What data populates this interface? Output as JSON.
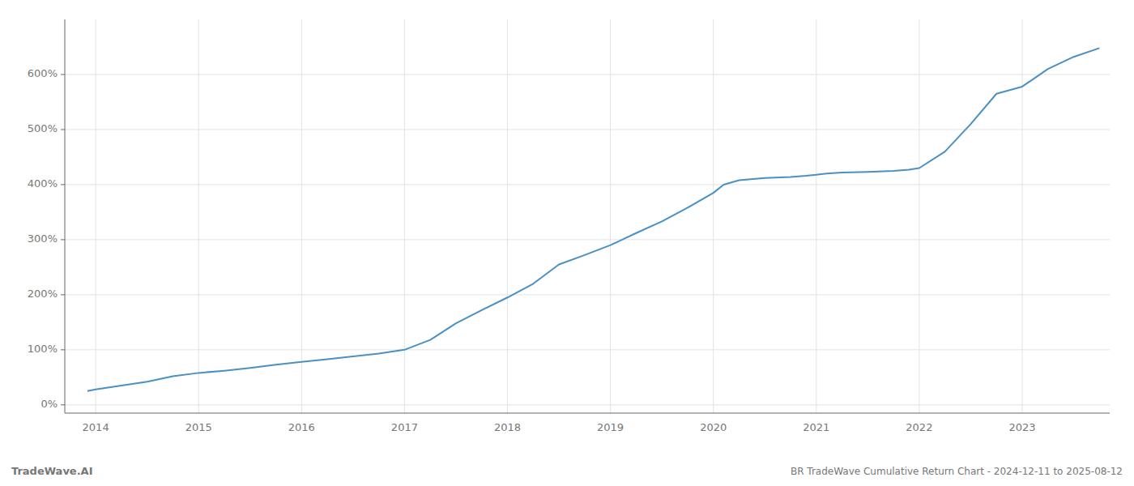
{
  "chart_data": {
    "type": "line",
    "title": "BR TradeWave Cumulative Return Chart - 2024-12-11 to 2025-08-12",
    "watermark": "TradeWave.AI",
    "color": "#4a90c4",
    "x": [
      2013.92,
      2014.0,
      2014.25,
      2014.5,
      2014.75,
      2015.0,
      2015.25,
      2015.5,
      2015.75,
      2016.0,
      2016.25,
      2016.5,
      2016.75,
      2017.0,
      2017.25,
      2017.5,
      2017.75,
      2018.0,
      2018.25,
      2018.5,
      2018.75,
      2019.0,
      2019.25,
      2019.5,
      2019.75,
      2020.0,
      2020.1,
      2020.25,
      2020.5,
      2020.75,
      2020.9,
      2021.0,
      2021.1,
      2021.25,
      2021.5,
      2021.75,
      2021.9,
      2022.0,
      2022.25,
      2022.5,
      2022.75,
      2023.0,
      2023.25,
      2023.5,
      2023.75
    ],
    "values": [
      25,
      28,
      35,
      42,
      52,
      58,
      62,
      67,
      73,
      78,
      83,
      88,
      93,
      100,
      118,
      148,
      172,
      195,
      220,
      255,
      272,
      290,
      312,
      333,
      358,
      385,
      400,
      408,
      412,
      414,
      416,
      418,
      420,
      422,
      423,
      425,
      427,
      430,
      460,
      510,
      565,
      578,
      610,
      632,
      648
    ],
    "xlim": [
      2013.7,
      2023.85
    ],
    "xticks": [
      2014,
      2015,
      2016,
      2017,
      2018,
      2019,
      2020,
      2021,
      2022,
      2023
    ],
    "ylim": [
      -15,
      700
    ],
    "yticks": [
      {
        "value": 0,
        "label": "0%"
      },
      {
        "value": 100,
        "label": "100%"
      },
      {
        "value": 200,
        "label": "200%"
      },
      {
        "value": 300,
        "label": "300%"
      },
      {
        "value": 400,
        "label": "400%"
      },
      {
        "value": 500,
        "label": "500%"
      },
      {
        "value": 600,
        "label": "600%"
      }
    ],
    "grid": true
  }
}
